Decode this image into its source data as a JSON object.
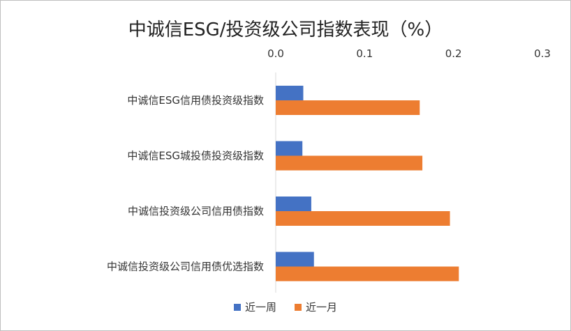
{
  "chart_data": {
    "type": "bar",
    "orientation": "horizontal",
    "title": "中诚信ESG/投资级公司指数表现（%）",
    "xlim": [
      0.0,
      0.3
    ],
    "x_ticks": [
      "0.0",
      "0.1",
      "0.2",
      "0.3"
    ],
    "x_tick_values": [
      0.0,
      0.1,
      0.2,
      0.3
    ],
    "x_axis_position": "top",
    "categories": [
      "中诚信ESG信用债投资级指数",
      "中诚信ESG城投债投资级指数",
      "中诚信投资级公司信用债指数",
      "中诚信投资级公司信用债优选指数"
    ],
    "series": [
      {
        "name": "近一周",
        "color": "#4472C4",
        "values": [
          0.031,
          0.03,
          0.04,
          0.043
        ]
      },
      {
        "name": "近一月",
        "color": "#ED7D31",
        "values": [
          0.162,
          0.165,
          0.196,
          0.206
        ]
      }
    ],
    "grid": false,
    "legend_position": "bottom"
  }
}
